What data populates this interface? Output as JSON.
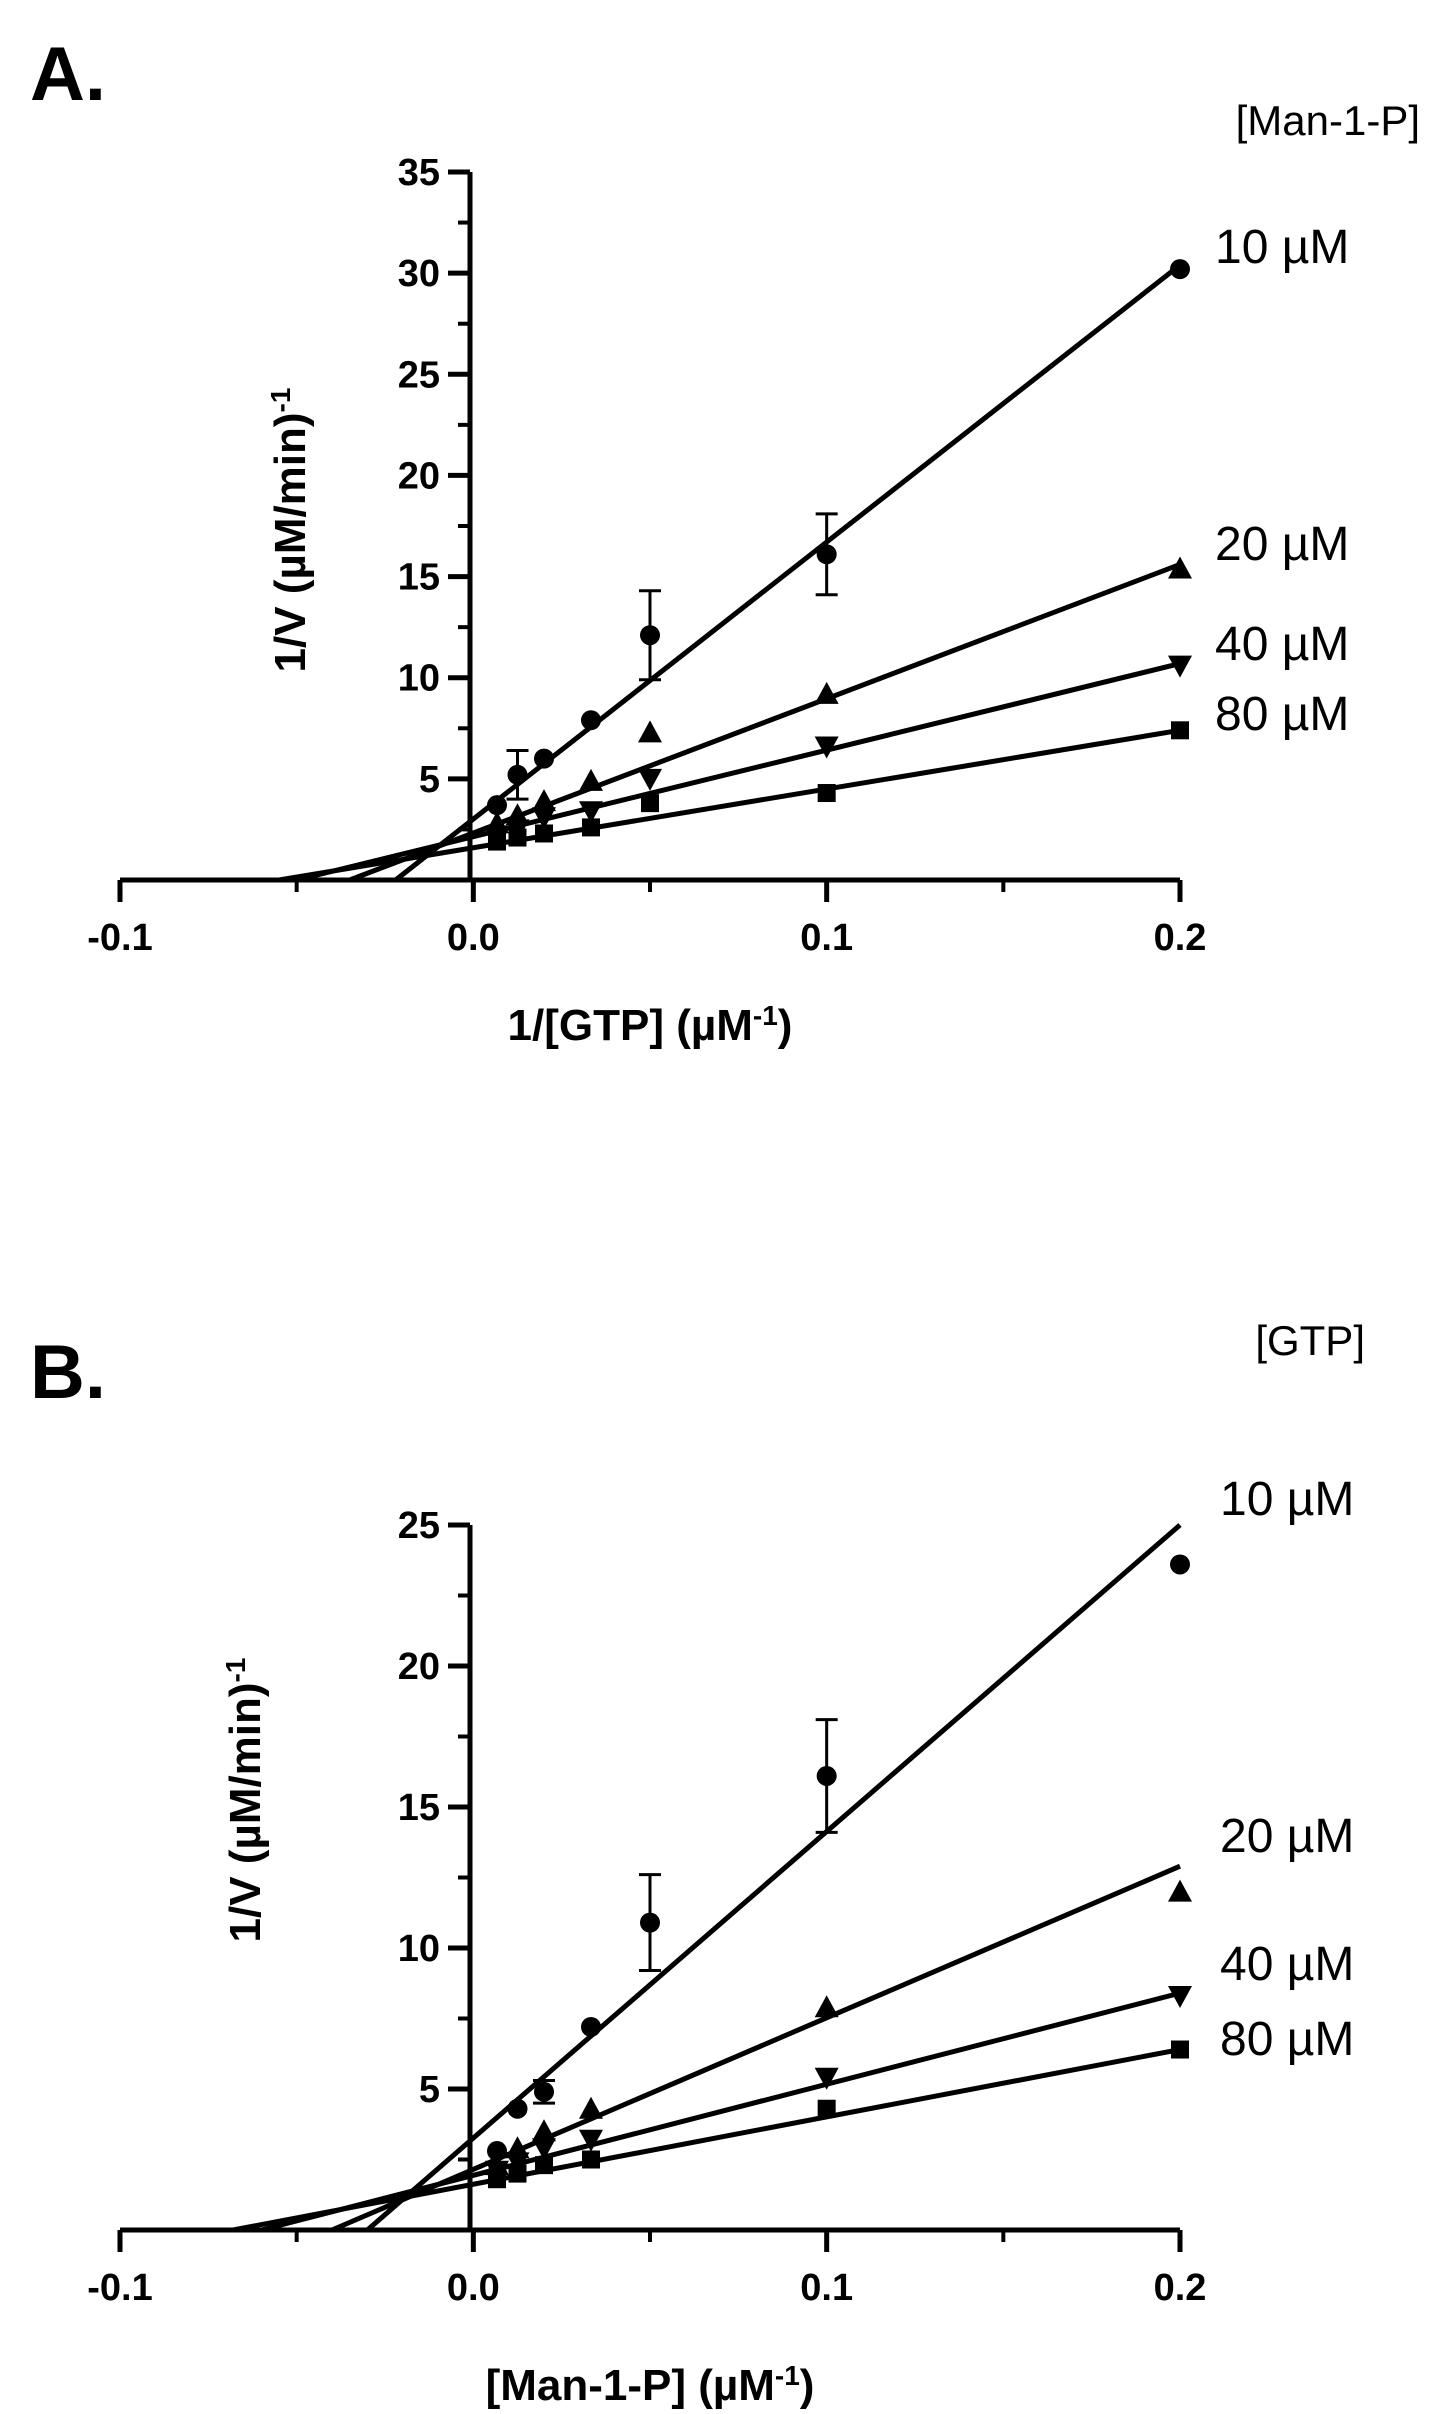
{
  "chart_data": [
    {
      "type": "scatter",
      "panel_label": "A.",
      "legend_title": "[Man-1-P]",
      "xlabel_main": "1/[GTP] (µM",
      "xlabel_sup": "-1",
      "xlabel_end": ")",
      "ylabel_main": "1/V (µM/min)",
      "ylabel_sup": "-1",
      "xlim": [
        -0.1,
        0.2
      ],
      "ylim": [
        0,
        35
      ],
      "xticks": [
        -0.1,
        0.0,
        0.1,
        0.2
      ],
      "xtick_labels": [
        "-0.1",
        "0.0",
        "0.1",
        "0.2"
      ],
      "yticks": [
        5,
        10,
        15,
        20,
        25,
        30,
        35
      ],
      "ytick_labels": [
        "5",
        "10",
        "15",
        "20",
        "25",
        "30",
        "35"
      ],
      "yminor": [
        2.5,
        7.5,
        12.5,
        17.5,
        22.5,
        27.5,
        32.5
      ],
      "series": [
        {
          "name": "10 µM",
          "label": "10 µM",
          "marker": "circle",
          "x": [
            0.0067,
            0.0125,
            0.02,
            0.0333,
            0.05,
            0.1,
            0.2
          ],
          "y": [
            3.7,
            5.2,
            6.0,
            7.9,
            12.1,
            16.1,
            30.2
          ],
          "error": [
            0,
            1.2,
            0,
            0,
            2.2,
            2.0,
            0
          ],
          "fit_x": [
            -0.022,
            0.2
          ],
          "fit_y": [
            0,
            30.4
          ]
        },
        {
          "name": "20 µM",
          "label": "20 µM",
          "marker": "triangle-up",
          "x": [
            0.0067,
            0.0125,
            0.02,
            0.0333,
            0.05,
            0.1,
            0.2
          ],
          "y": [
            2.8,
            3.2,
            3.9,
            4.9,
            7.3,
            9.2,
            15.4
          ],
          "error": [
            0,
            0,
            0,
            0,
            0,
            0,
            0
          ],
          "fit_x": [
            -0.035,
            0.2
          ],
          "fit_y": [
            0,
            15.6
          ]
        },
        {
          "name": "40 µM",
          "label": "40 µM",
          "marker": "triangle-down",
          "x": [
            0.0067,
            0.0125,
            0.02,
            0.0333,
            0.05,
            0.1,
            0.2
          ],
          "y": [
            2.2,
            2.5,
            3.1,
            3.4,
            5.0,
            6.6,
            10.6
          ],
          "error": [
            0,
            0,
            0,
            0,
            0,
            0,
            0
          ],
          "fit_x": [
            -0.05,
            0.2
          ],
          "fit_y": [
            0,
            10.7
          ]
        },
        {
          "name": "80 µM",
          "label": "80 µM",
          "marker": "square",
          "x": [
            0.0067,
            0.0125,
            0.02,
            0.0333,
            0.05,
            0.1,
            0.2
          ],
          "y": [
            1.9,
            2.1,
            2.3,
            2.6,
            3.8,
            4.3,
            7.4
          ],
          "error": [
            0,
            0,
            0,
            0,
            0,
            0,
            0
          ],
          "fit_x": [
            -0.055,
            0.2
          ],
          "fit_y": [
            0,
            7.4
          ]
        }
      ]
    },
    {
      "type": "scatter",
      "panel_label": "B.",
      "legend_title": "[GTP]",
      "xlabel_main": "[Man-1-P] (µM",
      "xlabel_sup": "-1",
      "xlabel_end": ")",
      "ylabel_main": "1/V (µM/min)",
      "ylabel_sup": "-1",
      "xlim": [
        -0.1,
        0.2
      ],
      "ylim": [
        0,
        25
      ],
      "xticks": [
        -0.1,
        0.0,
        0.1,
        0.2
      ],
      "xtick_labels": [
        "-0.1",
        "0.0",
        "0.1",
        "0.2"
      ],
      "yticks": [
        5,
        10,
        15,
        20,
        25
      ],
      "ytick_labels": [
        "5",
        "10",
        "15",
        "20",
        "25"
      ],
      "yminor": [
        2.5,
        7.5,
        12.5,
        17.5,
        22.5
      ],
      "series": [
        {
          "name": "10 µM",
          "label": "10 µM",
          "marker": "circle",
          "x": [
            0.0067,
            0.0125,
            0.02,
            0.0333,
            0.05,
            0.1,
            0.2
          ],
          "y": [
            2.8,
            4.3,
            4.9,
            7.2,
            10.9,
            16.1,
            23.6
          ],
          "error": [
            0,
            0,
            0.4,
            0,
            1.7,
            2.0,
            0
          ],
          "fit_x": [
            -0.03,
            0.2
          ],
          "fit_y": [
            0,
            25.0
          ]
        },
        {
          "name": "20 µM",
          "label": "20 µM",
          "marker": "triangle-up",
          "x": [
            0.0067,
            0.0125,
            0.02,
            0.0333,
            0.1,
            0.2
          ],
          "y": [
            2.3,
            2.9,
            3.5,
            4.3,
            7.9,
            12.0
          ],
          "error": [
            0,
            0,
            0,
            0,
            0,
            0
          ],
          "fit_x": [
            -0.04,
            0.2
          ],
          "fit_y": [
            0,
            12.9
          ]
        },
        {
          "name": "40 µM",
          "label": "40 µM",
          "marker": "triangle-down",
          "x": [
            0.0067,
            0.0125,
            0.02,
            0.0333,
            0.1,
            0.2
          ],
          "y": [
            2.1,
            2.4,
            2.9,
            3.2,
            5.4,
            8.3
          ],
          "error": [
            0,
            0,
            0,
            0,
            0,
            0
          ],
          "fit_x": [
            -0.06,
            0.2
          ],
          "fit_y": [
            0,
            8.4
          ]
        },
        {
          "name": "80 µM",
          "label": "80 µM",
          "marker": "square",
          "x": [
            0.0067,
            0.0125,
            0.02,
            0.0333,
            0.1,
            0.2
          ],
          "y": [
            1.8,
            2.0,
            2.3,
            2.5,
            4.3,
            6.4
          ],
          "error": [
            0,
            0,
            0,
            0,
            0,
            0
          ],
          "fit_x": [
            -0.068,
            0.2
          ],
          "fit_y": [
            0,
            6.4
          ]
        }
      ]
    }
  ]
}
